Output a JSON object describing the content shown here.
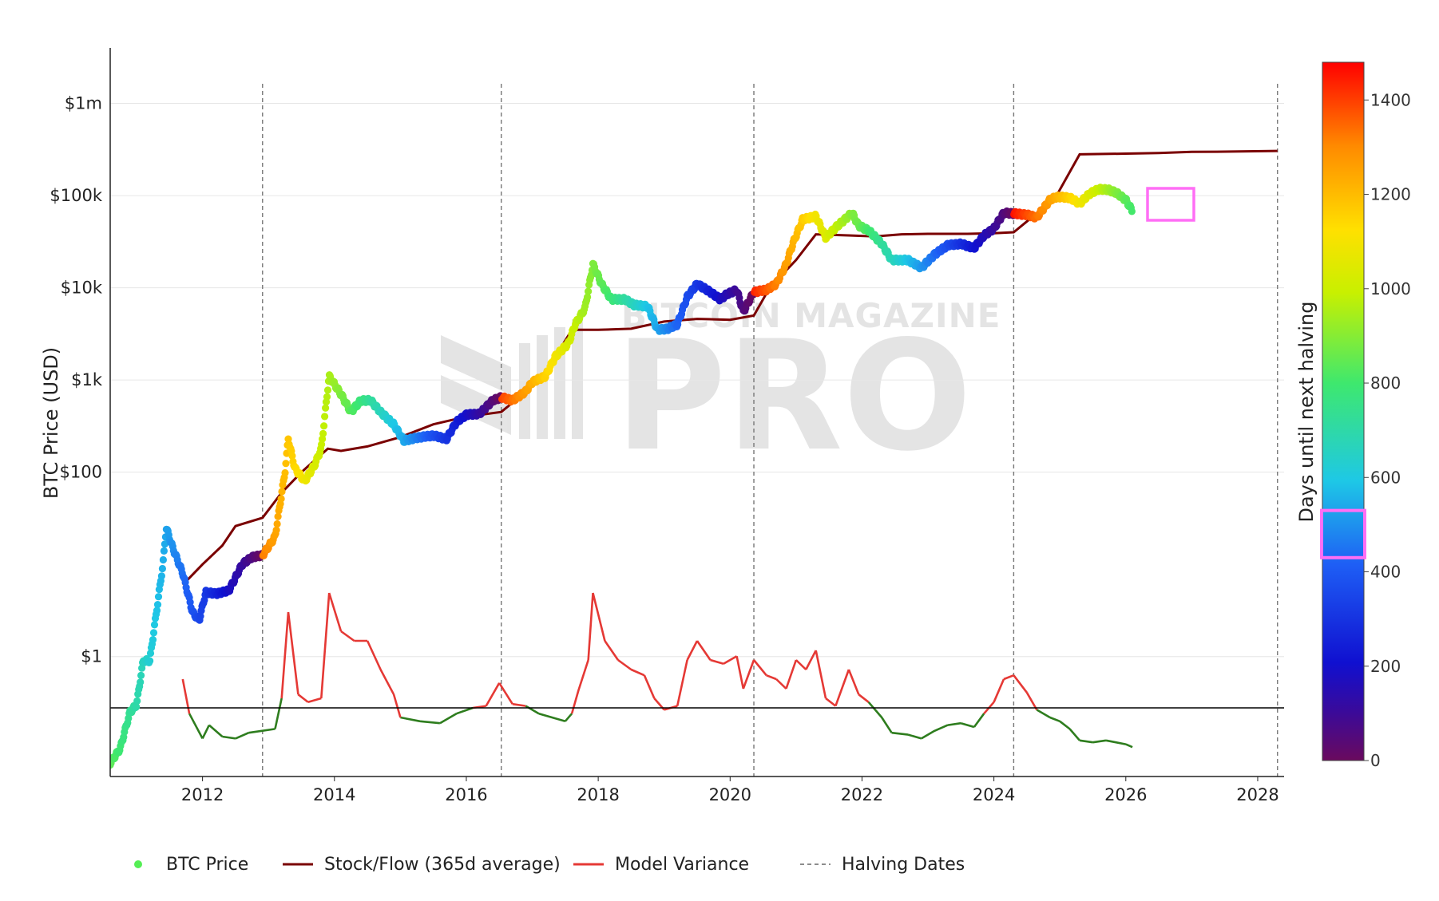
{
  "chart_data": {
    "type": "scatter",
    "ylabel": "BTC Price (USD)",
    "y_scale": "log",
    "x_range": [
      2010.6,
      2028.4
    ],
    "y_range_usd": [
      0.05,
      4000000
    ],
    "x_ticks": [
      {
        "value": 2012,
        "label": "2012"
      },
      {
        "value": 2014,
        "label": "2014"
      },
      {
        "value": 2016,
        "label": "2016"
      },
      {
        "value": 2018,
        "label": "2018"
      },
      {
        "value": 2020,
        "label": "2020"
      },
      {
        "value": 2022,
        "label": "2022"
      },
      {
        "value": 2024,
        "label": "2024"
      },
      {
        "value": 2026,
        "label": "2026"
      },
      {
        "value": 2028,
        "label": "2028"
      }
    ],
    "y_ticks": [
      {
        "value": 1,
        "label": "$1"
      },
      {
        "value": 100,
        "label": "$100"
      },
      {
        "value": 1000,
        "label": "$1k"
      },
      {
        "value": 10000,
        "label": "$10k"
      },
      {
        "value": 100000,
        "label": "$100k"
      },
      {
        "value": 1000000,
        "label": "$1m"
      }
    ],
    "halving_dates": [
      2012.91,
      2016.53,
      2020.36,
      2024.3,
      2028.3
    ],
    "colorbar": {
      "title": "Days until next halving",
      "min": 0,
      "max": 1480,
      "ticks": [
        0,
        200,
        400,
        600,
        800,
        1000,
        1200,
        1400
      ],
      "highlight_range": [
        430,
        530
      ]
    },
    "legend": [
      {
        "name": "BTC Price",
        "kind": "marker",
        "color": "#55ee55"
      },
      {
        "name": "Stock/Flow (365d average)",
        "kind": "line",
        "color": "#7a0000"
      },
      {
        "name": "Model Variance",
        "kind": "line",
        "color": "#e53935"
      },
      {
        "name": "Halving Dates",
        "kind": "dash",
        "color": "#666666"
      }
    ],
    "btc_price": [
      [
        2010.6,
        0.07
      ],
      [
        2010.75,
        0.1
      ],
      [
        2010.9,
        0.25
      ],
      [
        2011.0,
        0.3
      ],
      [
        2011.1,
        0.9
      ],
      [
        2011.2,
        0.9
      ],
      [
        2011.3,
        3
      ],
      [
        2011.4,
        10
      ],
      [
        2011.45,
        25
      ],
      [
        2011.55,
        15
      ],
      [
        2011.7,
        8
      ],
      [
        2011.85,
        3
      ],
      [
        2011.95,
        2.5
      ],
      [
        2012.05,
        5
      ],
      [
        2012.2,
        4.8
      ],
      [
        2012.4,
        5.2
      ],
      [
        2012.6,
        10
      ],
      [
        2012.75,
        12
      ],
      [
        2012.91,
        12.5
      ],
      [
        2013.1,
        20
      ],
      [
        2013.25,
        100
      ],
      [
        2013.3,
        230
      ],
      [
        2013.4,
        110
      ],
      [
        2013.55,
        80
      ],
      [
        2013.7,
        120
      ],
      [
        2013.8,
        180
      ],
      [
        2013.92,
        1100
      ],
      [
        2014.1,
        700
      ],
      [
        2014.25,
        450
      ],
      [
        2014.4,
        600
      ],
      [
        2014.55,
        600
      ],
      [
        2014.7,
        450
      ],
      [
        2014.9,
        330
      ],
      [
        2015.05,
        220
      ],
      [
        2015.3,
        240
      ],
      [
        2015.5,
        250
      ],
      [
        2015.7,
        230
      ],
      [
        2015.85,
        350
      ],
      [
        2016.0,
        420
      ],
      [
        2016.2,
        430
      ],
      [
        2016.4,
        600
      ],
      [
        2016.53,
        650
      ],
      [
        2016.7,
        600
      ],
      [
        2016.9,
        750
      ],
      [
        2017.0,
        950
      ],
      [
        2017.2,
        1100
      ],
      [
        2017.35,
        1800
      ],
      [
        2017.55,
        2500
      ],
      [
        2017.65,
        4000
      ],
      [
        2017.8,
        6000
      ],
      [
        2017.92,
        18000
      ],
      [
        2018.05,
        11000
      ],
      [
        2018.2,
        7500
      ],
      [
        2018.4,
        7500
      ],
      [
        2018.55,
        6500
      ],
      [
        2018.75,
        6300
      ],
      [
        2018.9,
        3500
      ],
      [
        2019.05,
        3600
      ],
      [
        2019.2,
        4000
      ],
      [
        2019.35,
        8000
      ],
      [
        2019.5,
        11000
      ],
      [
        2019.7,
        9000
      ],
      [
        2019.85,
        7500
      ],
      [
        2019.95,
        8500
      ],
      [
        2020.1,
        9500
      ],
      [
        2020.2,
        5500
      ],
      [
        2020.36,
        9000
      ],
      [
        2020.55,
        9500
      ],
      [
        2020.7,
        11000
      ],
      [
        2020.85,
        18000
      ],
      [
        2020.95,
        30000
      ],
      [
        2021.1,
        55000
      ],
      [
        2021.3,
        60000
      ],
      [
        2021.45,
        35000
      ],
      [
        2021.6,
        45000
      ],
      [
        2021.85,
        65000
      ],
      [
        2021.95,
        47000
      ],
      [
        2022.1,
        42000
      ],
      [
        2022.3,
        30000
      ],
      [
        2022.45,
        20000
      ],
      [
        2022.7,
        20000
      ],
      [
        2022.9,
        16500
      ],
      [
        2023.1,
        23000
      ],
      [
        2023.3,
        29000
      ],
      [
        2023.5,
        30000
      ],
      [
        2023.7,
        27000
      ],
      [
        2023.85,
        37000
      ],
      [
        2024.0,
        44000
      ],
      [
        2024.15,
        65000
      ],
      [
        2024.3,
        64000
      ],
      [
        2024.5,
        62000
      ],
      [
        2024.65,
        58000
      ],
      [
        2024.85,
        90000
      ],
      [
        2024.95,
        97000
      ],
      [
        2025.15,
        95000
      ],
      [
        2025.3,
        82000
      ],
      [
        2025.45,
        105000
      ],
      [
        2025.6,
        118000
      ],
      [
        2025.75,
        115000
      ],
      [
        2025.85,
        108000
      ],
      [
        2026.0,
        90000
      ],
      [
        2026.1,
        68000
      ]
    ],
    "stock_flow_365d": [
      [
        2011.7,
        6
      ],
      [
        2012.0,
        10
      ],
      [
        2012.3,
        16
      ],
      [
        2012.5,
        26
      ],
      [
        2012.91,
        32
      ],
      [
        2013.2,
        60
      ],
      [
        2013.5,
        100
      ],
      [
        2013.9,
        180
      ],
      [
        2014.1,
        170
      ],
      [
        2014.5,
        190
      ],
      [
        2015.0,
        240
      ],
      [
        2015.5,
        330
      ],
      [
        2016.0,
        400
      ],
      [
        2016.53,
        450
      ],
      [
        2016.8,
        650
      ],
      [
        2017.2,
        1200
      ],
      [
        2017.6,
        3500
      ],
      [
        2018.0,
        3500
      ],
      [
        2018.5,
        3600
      ],
      [
        2019.0,
        4300
      ],
      [
        2019.5,
        4600
      ],
      [
        2020.0,
        4500
      ],
      [
        2020.36,
        5000
      ],
      [
        2020.6,
        10000
      ],
      [
        2021.0,
        20000
      ],
      [
        2021.3,
        38000
      ],
      [
        2021.8,
        37000
      ],
      [
        2022.2,
        36000
      ],
      [
        2022.6,
        38000
      ],
      [
        2023.0,
        38500
      ],
      [
        2023.6,
        38500
      ],
      [
        2024.0,
        39000
      ],
      [
        2024.3,
        40000
      ],
      [
        2024.6,
        60000
      ],
      [
        2024.95,
        100000
      ],
      [
        2025.3,
        280000
      ],
      [
        2026.0,
        285000
      ],
      [
        2026.5,
        290000
      ],
      [
        2027.0,
        298000
      ],
      [
        2027.5,
        300000
      ],
      [
        2028.3,
        305000
      ]
    ],
    "model_variance": [
      [
        2011.7,
        0.4
      ],
      [
        2011.8,
        0.22
      ],
      [
        2012.0,
        0.09
      ],
      [
        2012.1,
        0.16
      ],
      [
        2012.3,
        0.1
      ],
      [
        2012.5,
        0.09
      ],
      [
        2012.7,
        0.12
      ],
      [
        2012.9,
        0.13
      ],
      [
        2013.1,
        0.14
      ],
      [
        2013.2,
        0.3
      ],
      [
        2013.3,
        0.75
      ],
      [
        2013.45,
        0.32
      ],
      [
        2013.6,
        0.28
      ],
      [
        2013.8,
        0.3
      ],
      [
        2013.92,
        0.85
      ],
      [
        2014.1,
        0.65
      ],
      [
        2014.3,
        0.6
      ],
      [
        2014.5,
        0.6
      ],
      [
        2014.7,
        0.45
      ],
      [
        2014.9,
        0.32
      ],
      [
        2015.0,
        0.2
      ],
      [
        2015.3,
        0.18
      ],
      [
        2015.6,
        0.17
      ],
      [
        2015.85,
        0.22
      ],
      [
        2016.1,
        0.25
      ],
      [
        2016.3,
        0.26
      ],
      [
        2016.5,
        0.38
      ],
      [
        2016.7,
        0.27
      ],
      [
        2016.9,
        0.26
      ],
      [
        2017.1,
        0.22
      ],
      [
        2017.3,
        0.2
      ],
      [
        2017.5,
        0.18
      ],
      [
        2017.6,
        0.22
      ],
      [
        2017.7,
        0.34
      ],
      [
        2017.85,
        0.5
      ],
      [
        2017.92,
        0.85
      ],
      [
        2018.1,
        0.6
      ],
      [
        2018.3,
        0.5
      ],
      [
        2018.5,
        0.45
      ],
      [
        2018.7,
        0.42
      ],
      [
        2018.85,
        0.3
      ],
      [
        2019.0,
        0.24
      ],
      [
        2019.2,
        0.26
      ],
      [
        2019.35,
        0.5
      ],
      [
        2019.5,
        0.6
      ],
      [
        2019.7,
        0.5
      ],
      [
        2019.9,
        0.48
      ],
      [
        2020.1,
        0.52
      ],
      [
        2020.2,
        0.35
      ],
      [
        2020.36,
        0.5
      ],
      [
        2020.55,
        0.42
      ],
      [
        2020.7,
        0.4
      ],
      [
        2020.85,
        0.35
      ],
      [
        2021.0,
        0.5
      ],
      [
        2021.15,
        0.45
      ],
      [
        2021.3,
        0.55
      ],
      [
        2021.45,
        0.3
      ],
      [
        2021.6,
        0.26
      ],
      [
        2021.8,
        0.45
      ],
      [
        2021.95,
        0.32
      ],
      [
        2022.1,
        0.28
      ],
      [
        2022.3,
        0.2
      ],
      [
        2022.45,
        0.12
      ],
      [
        2022.7,
        0.11
      ],
      [
        2022.9,
        0.09
      ],
      [
        2023.1,
        0.13
      ],
      [
        2023.3,
        0.16
      ],
      [
        2023.5,
        0.17
      ],
      [
        2023.7,
        0.15
      ],
      [
        2023.85,
        0.22
      ],
      [
        2024.0,
        0.28
      ],
      [
        2024.15,
        0.4
      ],
      [
        2024.3,
        0.42
      ],
      [
        2024.5,
        0.33
      ],
      [
        2024.65,
        0.24
      ],
      [
        2024.85,
        0.2
      ],
      [
        2025.0,
        0.18
      ],
      [
        2025.15,
        0.14
      ],
      [
        2025.3,
        0.08
      ],
      [
        2025.5,
        0.07
      ],
      [
        2025.7,
        0.08
      ],
      [
        2025.85,
        0.07
      ],
      [
        2026.0,
        0.06
      ],
      [
        2026.1,
        0.045
      ]
    ],
    "variance_baseline": 0.25,
    "variance_scale_factor": 1.0
  }
}
